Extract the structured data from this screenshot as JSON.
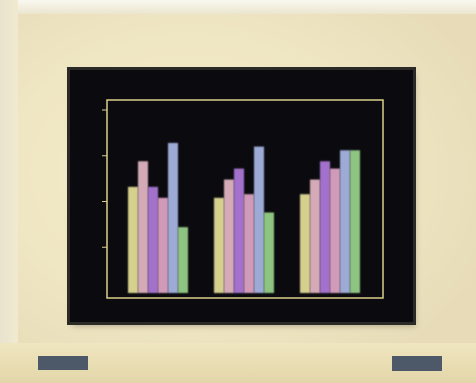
{
  "chart_data": {
    "type": "bar",
    "title": "",
    "xlabel": "",
    "ylabel": "",
    "categories": [
      "",
      "",
      ""
    ],
    "series": [
      {
        "values": [
          58,
          52,
          54
        ],
        "color": "#e8e19a"
      },
      {
        "values": [
          72,
          62,
          62
        ],
        "color": "#e6b8c6"
      },
      {
        "values": [
          58,
          68,
          72
        ],
        "color": "#b07adb"
      },
      {
        "values": [
          52,
          54,
          68
        ],
        "color": "#e3a7c8"
      },
      {
        "values": [
          82,
          80,
          78
        ],
        "color": "#a9b8e6"
      },
      {
        "values": [
          36,
          44,
          78
        ],
        "color": "#9ad48c"
      }
    ],
    "ylim": [
      0,
      100
    ],
    "grid": false,
    "legend": "none"
  },
  "labels": {
    "left_tag": "",
    "right_tag": ""
  }
}
